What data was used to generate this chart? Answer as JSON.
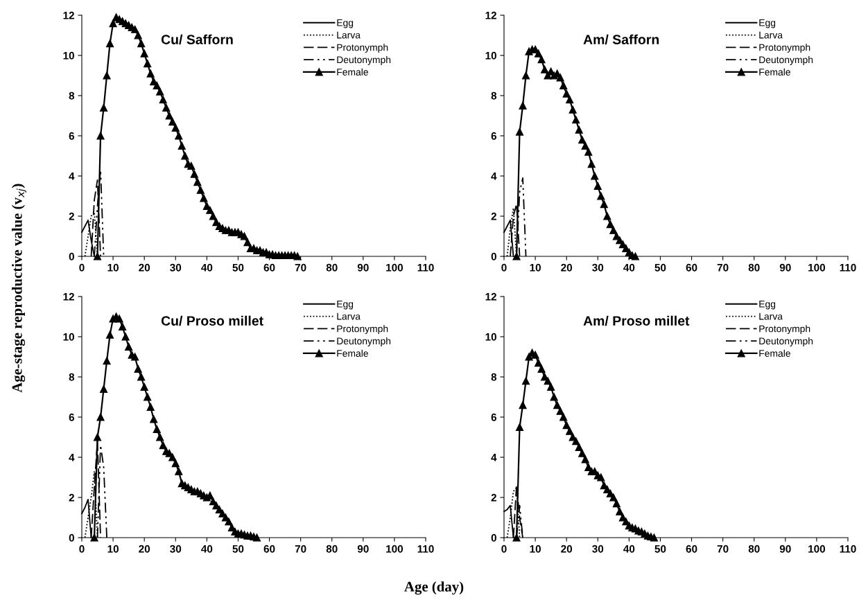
{
  "chart_data": [
    {
      "type": "line",
      "title": "Cu/ Safforn",
      "ylabel": "Age-stage reproductive value (v$_{xj}$)",
      "xlim": [
        0,
        110
      ],
      "xticks": [
        0,
        10,
        20,
        30,
        40,
        50,
        60,
        70,
        80,
        90,
        100,
        110
      ],
      "ylim": [
        0,
        12
      ],
      "yticks": [
        0,
        2,
        4,
        6,
        8,
        10,
        12
      ],
      "grid": false,
      "legend": "top right",
      "series": [
        {
          "name": "Egg",
          "color": "#000000",
          "line_style": "solid",
          "marker": "none",
          "x": [
            0,
            1,
            2,
            3,
            4
          ],
          "values": [
            1.2,
            1.5,
            1.8,
            0.8,
            0
          ]
        },
        {
          "name": "Larva",
          "color": "#000000",
          "line_style": "dotted",
          "marker": "none",
          "x": [
            1,
            2,
            3,
            4,
            5
          ],
          "values": [
            0,
            1.0,
            2.0,
            2.2,
            0
          ]
        },
        {
          "name": "Protonymph",
          "color": "#000000",
          "line_style": "dashed",
          "marker": "none",
          "x": [
            3,
            4,
            5,
            6
          ],
          "values": [
            0,
            2.8,
            3.8,
            0
          ]
        },
        {
          "name": "Deutonymph",
          "color": "#000000",
          "line_style": "dashdotdot",
          "marker": "none",
          "x": [
            4,
            5,
            6,
            7
          ],
          "values": [
            0,
            2.5,
            4.3,
            0
          ]
        },
        {
          "name": "Female",
          "color": "#000000",
          "line_style": "solid",
          "marker": "triangle",
          "x": [
            5,
            6,
            7,
            8,
            9,
            10,
            11,
            12,
            13,
            14,
            15,
            16,
            17,
            18,
            19,
            20,
            21,
            22,
            23,
            24,
            25,
            26,
            27,
            28,
            29,
            30,
            31,
            32,
            33,
            34,
            35,
            36,
            37,
            38,
            39,
            40,
            41,
            42,
            43,
            44,
            45,
            46,
            47,
            48,
            49,
            50,
            51,
            52,
            53,
            54,
            55,
            56,
            57,
            58,
            59,
            60,
            61,
            62,
            63,
            64,
            65,
            66,
            67,
            68,
            69
          ],
          "values": [
            0,
            6.0,
            7.4,
            9.0,
            10.6,
            11.6,
            11.9,
            11.8,
            11.7,
            11.6,
            11.5,
            11.4,
            11.3,
            11.0,
            10.6,
            10.1,
            9.6,
            9.1,
            8.7,
            8.5,
            8.2,
            7.8,
            7.4,
            7.0,
            6.7,
            6.4,
            6.0,
            5.5,
            5.0,
            4.6,
            4.5,
            4.1,
            3.7,
            3.3,
            2.9,
            2.5,
            2.3,
            2.0,
            1.7,
            1.5,
            1.4,
            1.3,
            1.3,
            1.2,
            1.2,
            1.2,
            1.1,
            1.0,
            0.7,
            0.4,
            0.4,
            0.3,
            0.3,
            0.2,
            0.2,
            0.1,
            0.1,
            0.05,
            0.05,
            0.05,
            0.05,
            0.05,
            0.05,
            0.05,
            0
          ]
        }
      ]
    },
    {
      "type": "line",
      "title": "Am/ Safforn",
      "xlim": [
        0,
        110
      ],
      "xticks": [
        0,
        10,
        20,
        30,
        40,
        50,
        60,
        70,
        80,
        90,
        100,
        110
      ],
      "ylim": [
        0,
        12
      ],
      "yticks": [
        0,
        2,
        4,
        6,
        8,
        10,
        12
      ],
      "grid": false,
      "legend": "top right",
      "series": [
        {
          "name": "Egg",
          "color": "#000000",
          "line_style": "solid",
          "marker": "none",
          "x": [
            0,
            1,
            2,
            3
          ],
          "values": [
            1.2,
            1.5,
            1.8,
            0
          ]
        },
        {
          "name": "Larva",
          "color": "#000000",
          "line_style": "dotted",
          "marker": "none",
          "x": [
            1,
            2,
            3,
            4
          ],
          "values": [
            0,
            1.4,
            2.4,
            0
          ]
        },
        {
          "name": "Protonymph",
          "color": "#000000",
          "line_style": "dashed",
          "marker": "none",
          "x": [
            2,
            3,
            4,
            5
          ],
          "values": [
            0,
            2.0,
            2.6,
            0
          ]
        },
        {
          "name": "Deutonymph",
          "color": "#000000",
          "line_style": "dashdotdot",
          "marker": "none",
          "x": [
            4,
            5,
            6,
            7
          ],
          "values": [
            0,
            3.2,
            3.9,
            0
          ]
        },
        {
          "name": "Female",
          "color": "#000000",
          "line_style": "solid",
          "marker": "triangle",
          "x": [
            4,
            5,
            6,
            7,
            8,
            9,
            10,
            11,
            12,
            13,
            14,
            15,
            16,
            17,
            18,
            19,
            20,
            21,
            22,
            23,
            24,
            25,
            26,
            27,
            28,
            29,
            30,
            31,
            32,
            33,
            34,
            35,
            36,
            37,
            38,
            39,
            40,
            41,
            42
          ],
          "values": [
            0,
            6.2,
            7.5,
            9.0,
            10.2,
            10.3,
            10.3,
            10.1,
            9.8,
            9.3,
            9.0,
            9.2,
            9.0,
            9.1,
            8.9,
            8.5,
            8.1,
            7.8,
            7.3,
            6.8,
            6.3,
            5.8,
            5.5,
            5.2,
            4.6,
            4.0,
            3.5,
            3.0,
            2.6,
            2.0,
            1.6,
            1.3,
            1.0,
            0.8,
            0.6,
            0.4,
            0.2,
            0.05,
            0
          ]
        }
      ]
    },
    {
      "type": "line",
      "title": "Cu/ Proso millet",
      "xlabel": "Age (day)",
      "xlim": [
        0,
        110
      ],
      "xticks": [
        0,
        10,
        20,
        30,
        40,
        50,
        60,
        70,
        80,
        90,
        100,
        110
      ],
      "ylim": [
        0,
        12
      ],
      "yticks": [
        0,
        2,
        4,
        6,
        8,
        10,
        12
      ],
      "grid": false,
      "legend": "top right",
      "series": [
        {
          "name": "Egg",
          "color": "#000000",
          "line_style": "solid",
          "marker": "none",
          "x": [
            0,
            1,
            2,
            3
          ],
          "values": [
            1.2,
            1.5,
            1.9,
            0
          ]
        },
        {
          "name": "Larva",
          "color": "#000000",
          "line_style": "dotted",
          "marker": "none",
          "x": [
            1,
            2,
            3,
            4,
            5
          ],
          "values": [
            0,
            1.0,
            2.0,
            3.3,
            0
          ]
        },
        {
          "name": "Protonymph",
          "color": "#000000",
          "line_style": "dashed",
          "marker": "none",
          "x": [
            3,
            4,
            5,
            6
          ],
          "values": [
            0,
            2.5,
            4.8,
            0
          ]
        },
        {
          "name": "Deutonymph",
          "color": "#000000",
          "line_style": "dashdotdot",
          "marker": "none",
          "x": [
            5,
            6,
            7,
            8
          ],
          "values": [
            0,
            4.6,
            3.5,
            0
          ]
        },
        {
          "name": "Female",
          "color": "#000000",
          "line_style": "solid",
          "marker": "triangle",
          "x": [
            4,
            5,
            6,
            7,
            8,
            9,
            10,
            11,
            12,
            13,
            14,
            15,
            16,
            17,
            18,
            19,
            20,
            21,
            22,
            23,
            24,
            25,
            26,
            27,
            28,
            29,
            30,
            31,
            32,
            33,
            34,
            35,
            36,
            37,
            38,
            39,
            40,
            41,
            42,
            43,
            44,
            45,
            46,
            47,
            48,
            49,
            50,
            51,
            52,
            53,
            54,
            55,
            56
          ],
          "values": [
            0,
            5.0,
            6.0,
            7.4,
            8.8,
            10.1,
            10.9,
            11.0,
            10.9,
            10.5,
            10.0,
            9.5,
            9.1,
            9.0,
            8.4,
            8.0,
            7.5,
            7.0,
            6.5,
            5.9,
            5.4,
            5.0,
            4.6,
            4.3,
            4.2,
            4.0,
            3.7,
            3.3,
            2.7,
            2.6,
            2.5,
            2.4,
            2.3,
            2.3,
            2.2,
            2.1,
            2.0,
            2.1,
            1.8,
            1.6,
            1.4,
            1.2,
            1.0,
            0.8,
            0.5,
            0.3,
            0.2,
            0.2,
            0.15,
            0.1,
            0.1,
            0.05,
            0
          ]
        }
      ]
    },
    {
      "type": "line",
      "title": "Am/ Proso millet",
      "xlim": [
        0,
        110
      ],
      "xticks": [
        0,
        10,
        20,
        30,
        40,
        50,
        60,
        70,
        80,
        90,
        100,
        110
      ],
      "ylim": [
        0,
        12
      ],
      "yticks": [
        0,
        2,
        4,
        6,
        8,
        10,
        12
      ],
      "grid": false,
      "legend": "top right",
      "series": [
        {
          "name": "Egg",
          "color": "#000000",
          "line_style": "solid",
          "marker": "none",
          "x": [
            0,
            1,
            2,
            3
          ],
          "values": [
            1.3,
            1.4,
            1.6,
            0
          ]
        },
        {
          "name": "Larva",
          "color": "#000000",
          "line_style": "dotted",
          "marker": "none",
          "x": [
            1,
            2,
            3,
            4,
            5
          ],
          "values": [
            0,
            1.0,
            2.3,
            2.5,
            0
          ]
        },
        {
          "name": "Protonymph",
          "color": "#000000",
          "line_style": "dashed",
          "marker": "none",
          "x": [
            3,
            4,
            5,
            6
          ],
          "values": [
            0,
            2.6,
            1.0,
            0
          ]
        },
        {
          "name": "Deutonymph",
          "color": "#000000",
          "line_style": "dashdotdot",
          "marker": "none",
          "x": [
            4,
            5,
            6
          ],
          "values": [
            0,
            1.6,
            0
          ]
        },
        {
          "name": "Female",
          "color": "#000000",
          "line_style": "solid",
          "marker": "triangle",
          "x": [
            4,
            5,
            6,
            7,
            8,
            9,
            10,
            11,
            12,
            13,
            14,
            15,
            16,
            17,
            18,
            19,
            20,
            21,
            22,
            23,
            24,
            25,
            26,
            27,
            28,
            29,
            30,
            31,
            32,
            33,
            34,
            35,
            36,
            37,
            38,
            39,
            40,
            41,
            42,
            43,
            44,
            45,
            46,
            47,
            48
          ],
          "values": [
            0,
            5.5,
            6.6,
            7.8,
            9.0,
            9.2,
            9.1,
            8.7,
            8.4,
            8.0,
            7.8,
            7.5,
            7.0,
            6.6,
            6.3,
            6.0,
            5.6,
            5.3,
            5.0,
            4.8,
            4.5,
            4.2,
            3.9,
            3.5,
            3.3,
            3.3,
            3.1,
            3.0,
            2.6,
            2.4,
            2.2,
            2.0,
            1.7,
            1.3,
            1.0,
            0.8,
            0.6,
            0.5,
            0.45,
            0.35,
            0.3,
            0.2,
            0.1,
            0.05,
            0
          ]
        }
      ]
    }
  ]
}
